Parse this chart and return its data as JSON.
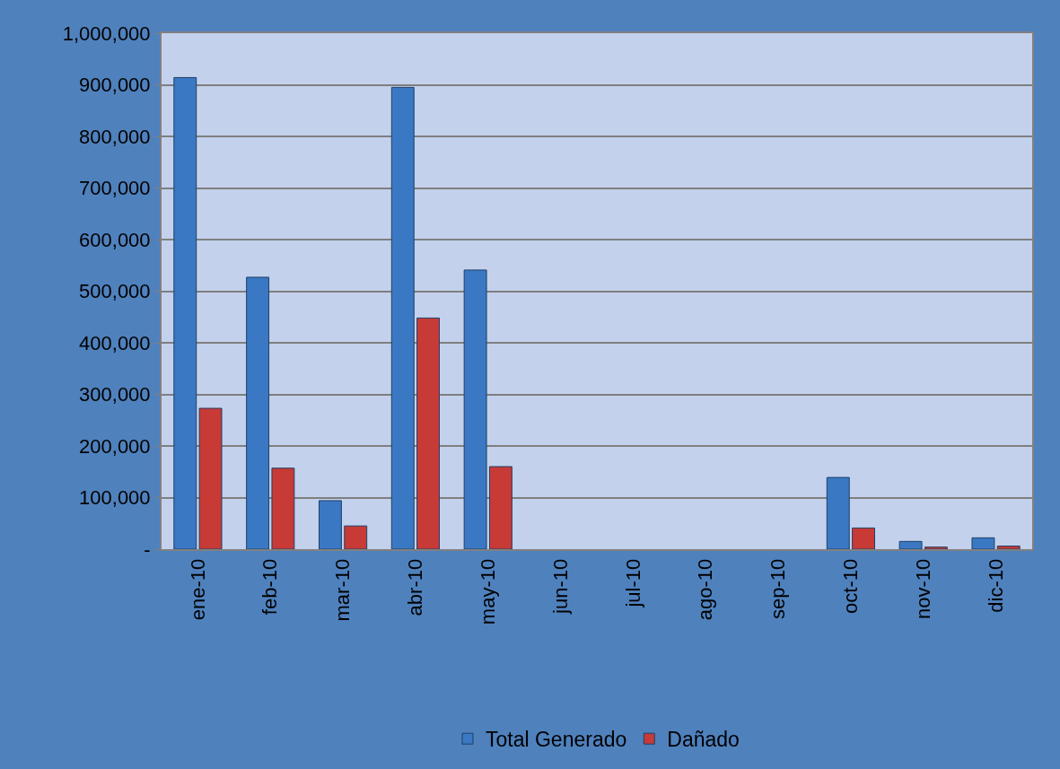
{
  "chart_data": {
    "type": "bar",
    "categories": [
      "ene-10",
      "feb-10",
      "mar-10",
      "abr-10",
      "may-10",
      "jun-10",
      "jul-10",
      "ago-10",
      "sep-10",
      "oct-10",
      "nov-10",
      "dic-10"
    ],
    "series": [
      {
        "name": "Total Generado",
        "color": "#3a78c3",
        "values": [
          914000,
          527000,
          94000,
          895000,
          541000,
          null,
          null,
          null,
          null,
          139000,
          15000,
          22000
        ]
      },
      {
        "name": "Dañado",
        "color": "#c83a36",
        "values": [
          273000,
          157000,
          45000,
          448000,
          160000,
          null,
          null,
          null,
          null,
          41000,
          4000,
          6000
        ]
      }
    ],
    "ylim": [
      0,
      1000000
    ],
    "yticks": [
      {
        "value": 0,
        "label": "-"
      },
      {
        "value": 100000,
        "label": "100,000"
      },
      {
        "value": 200000,
        "label": "200,000"
      },
      {
        "value": 300000,
        "label": "300,000"
      },
      {
        "value": 400000,
        "label": "400,000"
      },
      {
        "value": 500000,
        "label": "500,000"
      },
      {
        "value": 600000,
        "label": "600,000"
      },
      {
        "value": 700000,
        "label": "700,000"
      },
      {
        "value": 800000,
        "label": "800,000"
      },
      {
        "value": 900000,
        "label": "900,000"
      },
      {
        "value": 1000000,
        "label": "1,000,000"
      }
    ],
    "grid": "y",
    "legend": "bottom"
  }
}
